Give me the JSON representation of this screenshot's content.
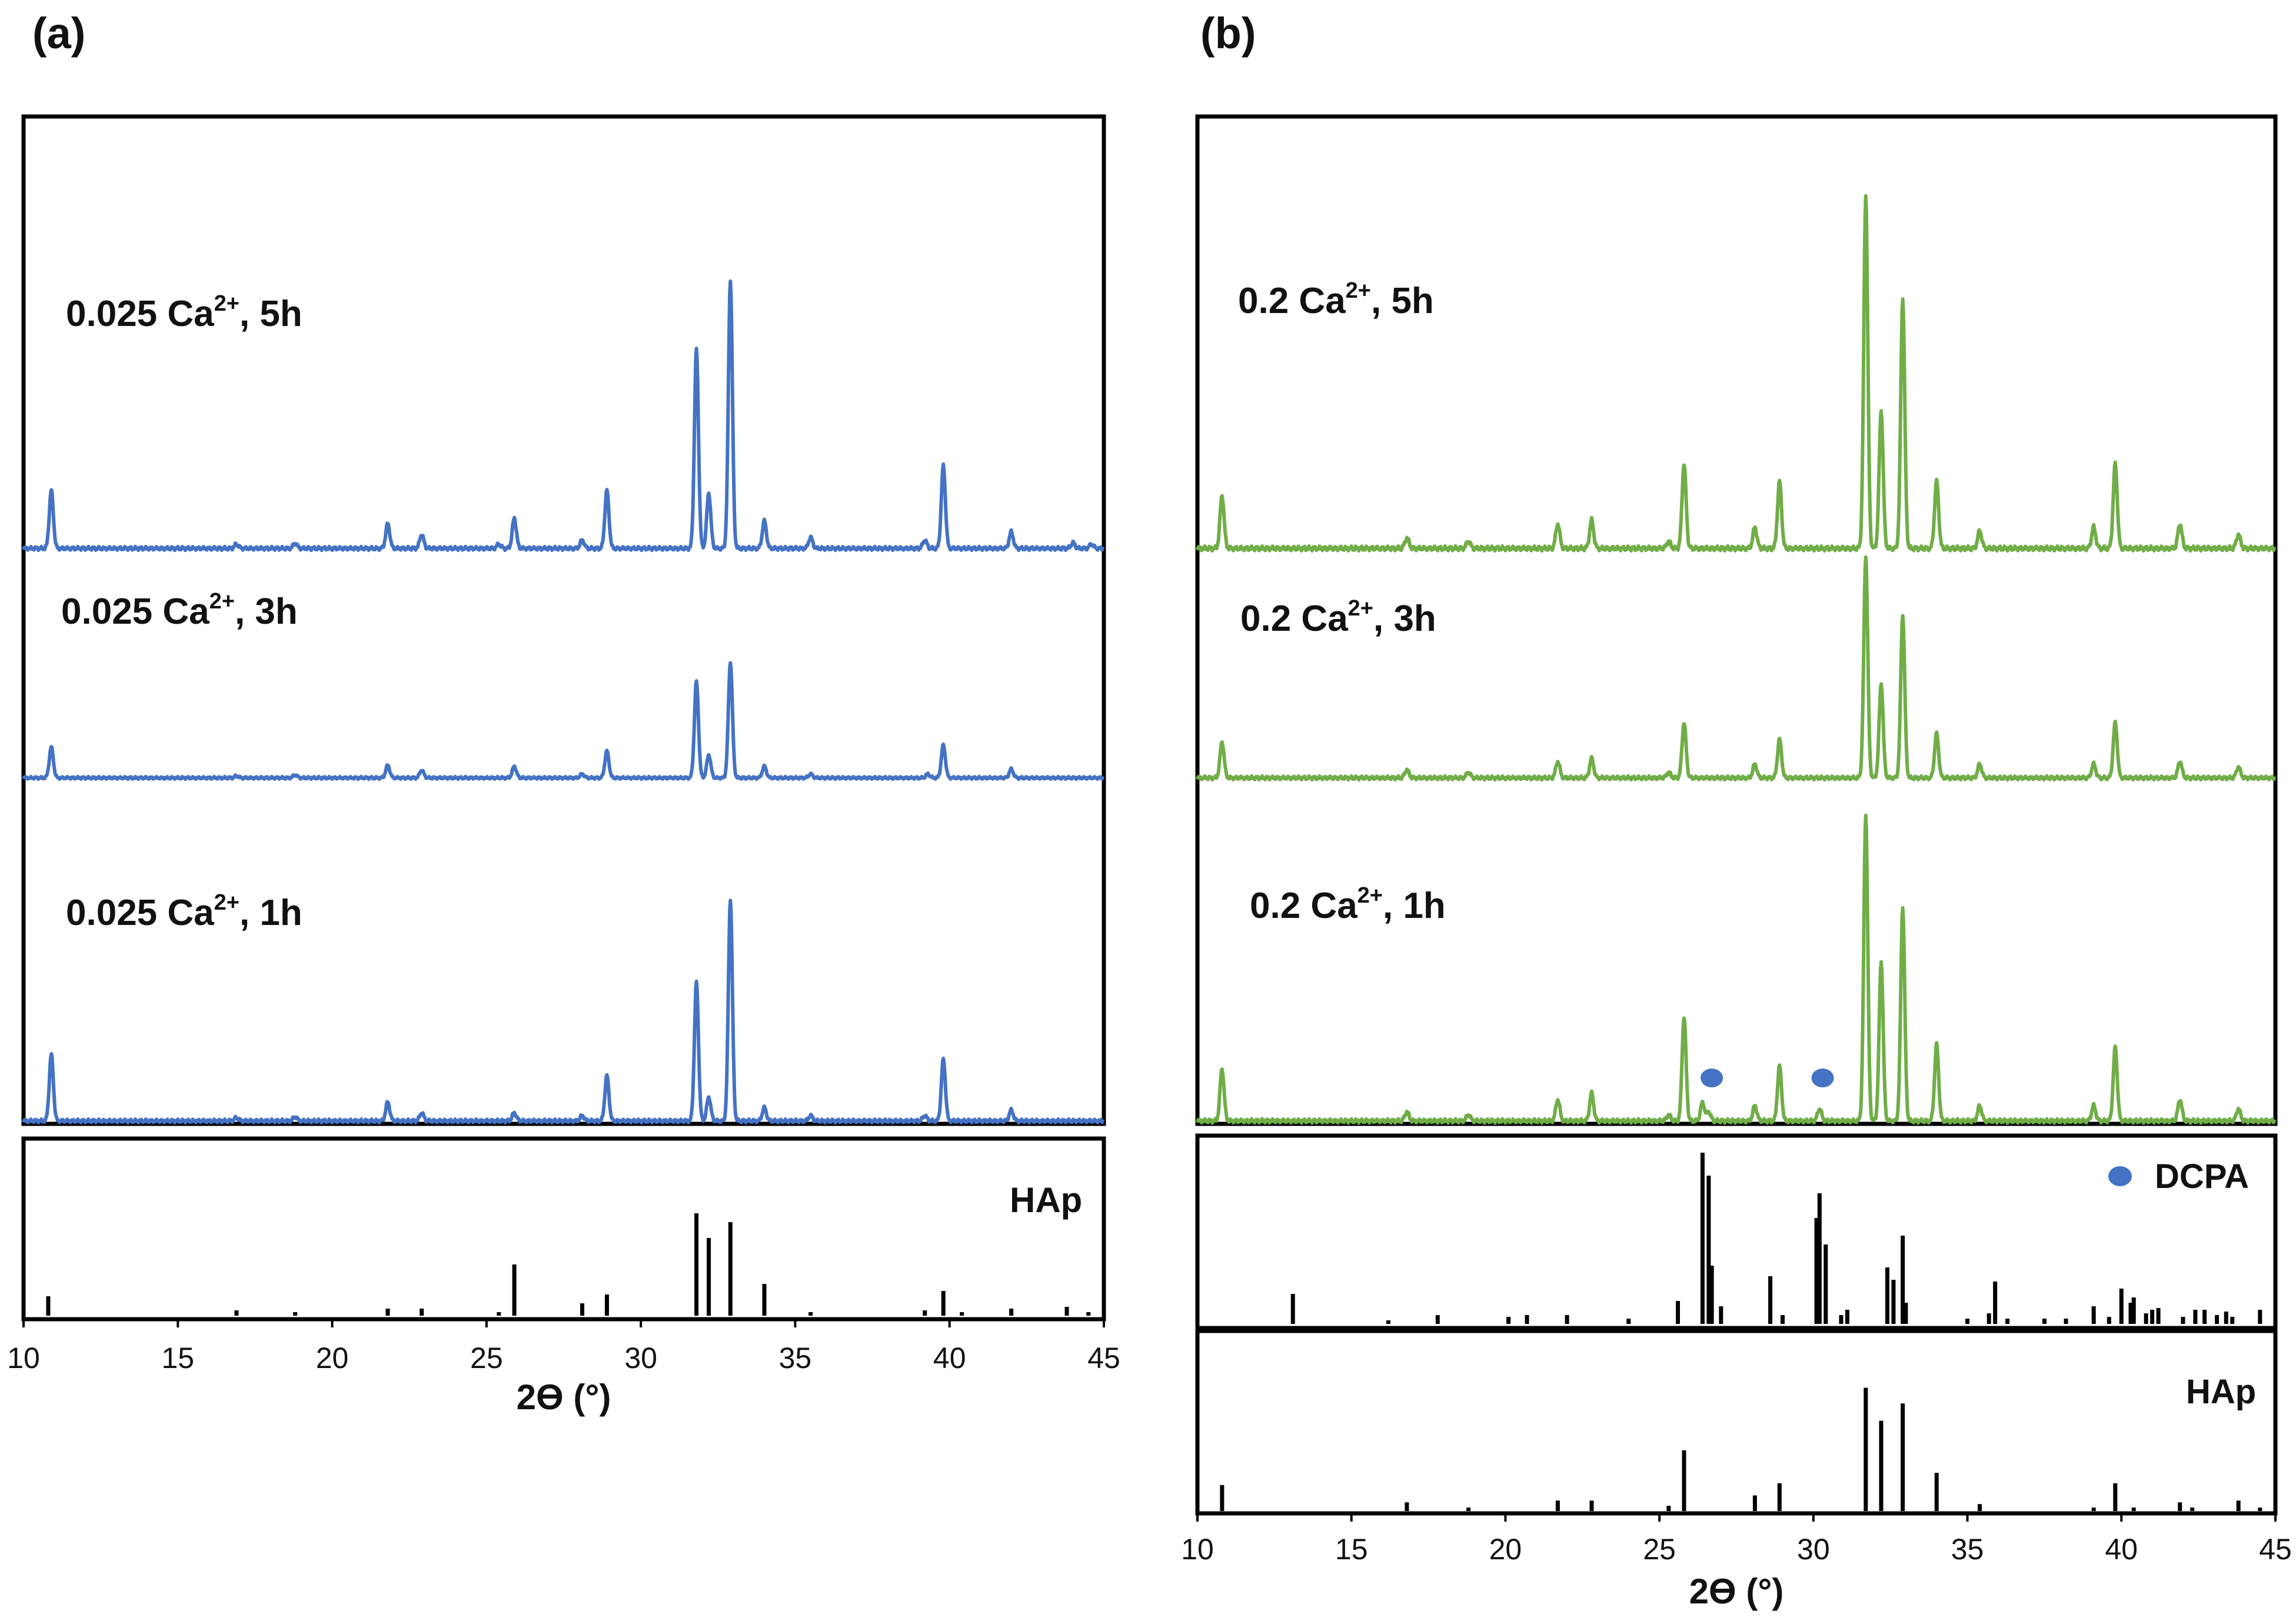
{
  "chart_data": {
    "type": "line",
    "axis_range": [
      10,
      45
    ],
    "x_ticks": [
      10,
      15,
      20,
      25,
      30,
      35,
      40,
      45
    ],
    "xlabel": "2ϴ (°)",
    "colors": {
      "a": "#4472C4",
      "b": "#70AD47",
      "ref": "#000000",
      "dcpa_marker": "#4472C4"
    },
    "panels": [
      {
        "id": "a",
        "label": "(a)",
        "traces": [
          {
            "name": "1h",
            "label": "0.025 Ca",
            "sup": "2+",
            "suffix": ", 1h",
            "scale": 0.72,
            "peaks": [
              [
                10.9,
                0.25
              ],
              [
                16.9,
                0.012
              ],
              [
                18.8,
                0.015
              ],
              [
                21.8,
                0.07
              ],
              [
                22.9,
                0.03
              ],
              [
                25.9,
                0.03
              ],
              [
                28.1,
                0.02
              ],
              [
                28.9,
                0.17
              ],
              [
                31.8,
                0.52
              ],
              [
                32.2,
                0.09
              ],
              [
                32.9,
                0.83
              ],
              [
                34.0,
                0.05
              ],
              [
                35.5,
                0.02
              ],
              [
                39.2,
                0.02
              ],
              [
                39.8,
                0.23
              ],
              [
                42.0,
                0.04
              ]
            ]
          },
          {
            "name": "3h",
            "label": "0.025 Ca",
            "sup": "2+",
            "suffix": ", 3h",
            "scale": 0.52,
            "peaks": [
              [
                10.9,
                0.16
              ],
              [
                16.9,
                0.01
              ],
              [
                18.8,
                0.015
              ],
              [
                21.8,
                0.065
              ],
              [
                22.9,
                0.04
              ],
              [
                25.9,
                0.06
              ],
              [
                28.1,
                0.02
              ],
              [
                28.9,
                0.14
              ],
              [
                31.8,
                0.5
              ],
              [
                32.2,
                0.12
              ],
              [
                32.9,
                0.6
              ],
              [
                34.0,
                0.06
              ],
              [
                35.5,
                0.02
              ],
              [
                39.3,
                0.02
              ],
              [
                39.8,
                0.17
              ],
              [
                42.0,
                0.045
              ]
            ]
          },
          {
            "name": "5h",
            "label": "0.025 Ca",
            "sup": "2+",
            "suffix": ", 5h",
            "scale": 1.0,
            "peaks": [
              [
                10.9,
                0.21
              ],
              [
                16.9,
                0.015
              ],
              [
                18.8,
                0.018
              ],
              [
                21.8,
                0.09
              ],
              [
                22.9,
                0.05
              ],
              [
                25.4,
                0.015
              ],
              [
                25.9,
                0.11
              ],
              [
                28.1,
                0.03
              ],
              [
                28.9,
                0.21
              ],
              [
                31.8,
                0.72
              ],
              [
                32.2,
                0.2
              ],
              [
                32.9,
                0.97
              ],
              [
                34.0,
                0.1
              ],
              [
                35.5,
                0.04
              ],
              [
                39.2,
                0.03
              ],
              [
                39.8,
                0.3
              ],
              [
                42.0,
                0.06
              ],
              [
                44.0,
                0.02
              ],
              [
                44.6,
                0.015
              ]
            ]
          }
        ],
        "references": [
          {
            "name": "HAp",
            "label": "HAp",
            "sticks": [
              [
                10.8,
                0.11
              ],
              [
                16.9,
                0.03
              ],
              [
                18.8,
                0.02
              ],
              [
                21.8,
                0.04
              ],
              [
                22.9,
                0.04
              ],
              [
                25.4,
                0.02
              ],
              [
                25.9,
                0.29
              ],
              [
                28.1,
                0.07
              ],
              [
                28.9,
                0.12
              ],
              [
                31.8,
                0.58
              ],
              [
                32.2,
                0.44
              ],
              [
                32.9,
                0.53
              ],
              [
                34.0,
                0.18
              ],
              [
                35.5,
                0.02
              ],
              [
                39.2,
                0.03
              ],
              [
                39.8,
                0.14
              ],
              [
                40.4,
                0.02
              ],
              [
                42.0,
                0.04
              ],
              [
                43.8,
                0.05
              ],
              [
                44.5,
                0.02
              ]
            ]
          }
        ]
      },
      {
        "id": "b",
        "label": "(b)",
        "traces": [
          {
            "name": "1h",
            "label": "0.2 Ca",
            "sup": "2+",
            "suffix": ", 1h",
            "scale": 1.0,
            "peaks": [
              [
                10.8,
                0.17
              ],
              [
                16.8,
                0.03
              ],
              [
                18.8,
                0.02
              ],
              [
                21.7,
                0.07
              ],
              [
                22.8,
                0.09
              ],
              [
                25.3,
                0.02
              ],
              [
                25.8,
                0.34
              ],
              [
                26.4,
                0.06
              ],
              [
                26.6,
                0.03
              ],
              [
                28.1,
                0.05
              ],
              [
                28.9,
                0.18
              ],
              [
                30.2,
                0.04
              ],
              [
                31.7,
                1.0
              ],
              [
                32.2,
                0.52
              ],
              [
                32.9,
                0.7
              ],
              [
                34.0,
                0.25
              ],
              [
                35.4,
                0.05
              ],
              [
                39.1,
                0.05
              ],
              [
                39.8,
                0.24
              ],
              [
                41.9,
                0.07
              ],
              [
                43.8,
                0.04
              ]
            ]
          },
          {
            "name": "3h",
            "label": "0.2 Ca",
            "sup": "2+",
            "suffix": ", 3h",
            "scale": 1.0,
            "peaks": [
              [
                10.8,
                0.13
              ],
              [
                16.8,
                0.03
              ],
              [
                18.8,
                0.02
              ],
              [
                21.7,
                0.06
              ],
              [
                22.8,
                0.07
              ],
              [
                25.3,
                0.02
              ],
              [
                25.8,
                0.2
              ],
              [
                28.1,
                0.05
              ],
              [
                28.9,
                0.14
              ],
              [
                31.7,
                0.8
              ],
              [
                32.2,
                0.34
              ],
              [
                32.9,
                0.59
              ],
              [
                34.0,
                0.16
              ],
              [
                35.4,
                0.05
              ],
              [
                39.1,
                0.05
              ],
              [
                39.8,
                0.2
              ],
              [
                41.9,
                0.06
              ],
              [
                43.8,
                0.04
              ]
            ]
          },
          {
            "name": "5h",
            "label": "0.2 Ca",
            "sup": "2+",
            "suffix": ", 5h",
            "scale": 1.0,
            "peaks": [
              [
                10.8,
                0.15
              ],
              [
                16.8,
                0.03
              ],
              [
                18.8,
                0.02
              ],
              [
                21.7,
                0.07
              ],
              [
                22.8,
                0.08
              ],
              [
                25.3,
                0.02
              ],
              [
                25.8,
                0.24
              ],
              [
                28.1,
                0.06
              ],
              [
                28.9,
                0.19
              ],
              [
                31.7,
                1.0
              ],
              [
                32.2,
                0.39
              ],
              [
                32.9,
                0.71
              ],
              [
                34.0,
                0.19
              ],
              [
                35.4,
                0.05
              ],
              [
                39.1,
                0.06
              ],
              [
                39.8,
                0.24
              ],
              [
                41.9,
                0.07
              ],
              [
                43.8,
                0.04
              ]
            ]
          }
        ],
        "dcpa_markers": [
          26.7,
          30.3
        ],
        "references": [
          {
            "name": "DCPA",
            "label": "DCPA",
            "marker": true,
            "sticks": [
              [
                13.1,
                0.17
              ],
              [
                16.2,
                0.02
              ],
              [
                17.8,
                0.05
              ],
              [
                20.1,
                0.04
              ],
              [
                20.7,
                0.05
              ],
              [
                22.0,
                0.05
              ],
              [
                24.0,
                0.03
              ],
              [
                25.6,
                0.13
              ],
              [
                26.4,
                0.97
              ],
              [
                26.6,
                0.84
              ],
              [
                26.7,
                0.33
              ],
              [
                27.0,
                0.1
              ],
              [
                28.6,
                0.27
              ],
              [
                29.0,
                0.05
              ],
              [
                30.1,
                0.6
              ],
              [
                30.2,
                0.74
              ],
              [
                30.4,
                0.45
              ],
              [
                30.9,
                0.05
              ],
              [
                31.1,
                0.08
              ],
              [
                32.4,
                0.32
              ],
              [
                32.6,
                0.25
              ],
              [
                32.9,
                0.5
              ],
              [
                33.0,
                0.12
              ],
              [
                35.0,
                0.03
              ],
              [
                35.7,
                0.06
              ],
              [
                35.9,
                0.24
              ],
              [
                36.3,
                0.03
              ],
              [
                37.5,
                0.03
              ],
              [
                38.2,
                0.03
              ],
              [
                39.1,
                0.1
              ],
              [
                39.6,
                0.04
              ],
              [
                40.0,
                0.2
              ],
              [
                40.3,
                0.12
              ],
              [
                40.4,
                0.15
              ],
              [
                40.8,
                0.06
              ],
              [
                41.0,
                0.08
              ],
              [
                41.2,
                0.09
              ],
              [
                42.0,
                0.04
              ],
              [
                42.4,
                0.08
              ],
              [
                42.7,
                0.08
              ],
              [
                43.1,
                0.05
              ],
              [
                43.4,
                0.07
              ],
              [
                43.6,
                0.04
              ],
              [
                44.5,
                0.08
              ]
            ]
          },
          {
            "name": "HAp",
            "label": "HAp",
            "sticks": [
              [
                10.8,
                0.15
              ],
              [
                16.8,
                0.05
              ],
              [
                18.8,
                0.02
              ],
              [
                21.7,
                0.06
              ],
              [
                22.8,
                0.06
              ],
              [
                25.3,
                0.03
              ],
              [
                25.8,
                0.35
              ],
              [
                28.1,
                0.09
              ],
              [
                28.9,
                0.16
              ],
              [
                31.7,
                0.71
              ],
              [
                32.2,
                0.52
              ],
              [
                32.9,
                0.62
              ],
              [
                34.0,
                0.22
              ],
              [
                35.4,
                0.04
              ],
              [
                39.1,
                0.02
              ],
              [
                39.8,
                0.16
              ],
              [
                40.4,
                0.02
              ],
              [
                41.9,
                0.05
              ],
              [
                42.3,
                0.02
              ],
              [
                43.8,
                0.06
              ],
              [
                44.5,
                0.02
              ]
            ]
          }
        ]
      }
    ]
  }
}
